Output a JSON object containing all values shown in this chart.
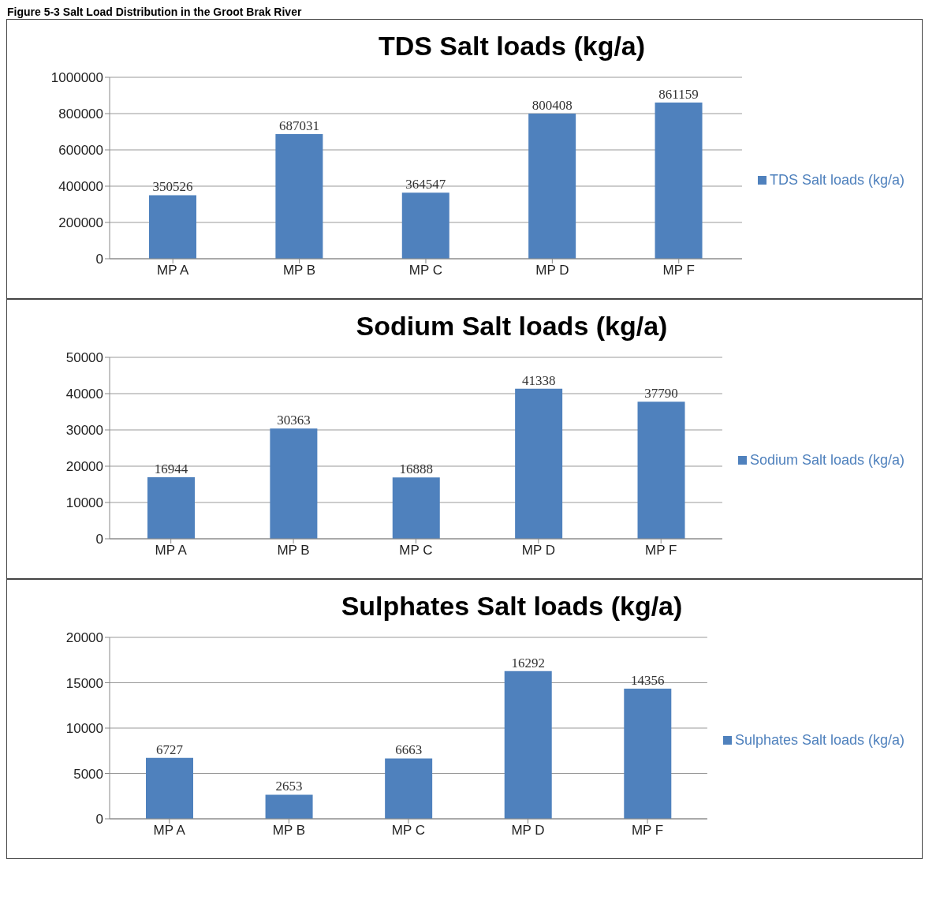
{
  "chart_data": [
    {
      "type": "bar",
      "title": "TDS Salt loads (kg/a)",
      "annotations": [
        "Figure 5-3 Salt Load Distribution in the Groot Brak River"
      ],
      "categories": [
        "MP A",
        "MP B",
        "MP C",
        "MP D",
        "MP F"
      ],
      "series": [
        {
          "name": "TDS Salt loads (kg/a)",
          "color": "#4f81bd",
          "values": [
            350526,
            687031,
            364547,
            800408,
            861159
          ]
        }
      ],
      "ylim": [
        0,
        1000000
      ],
      "yticks": [
        0,
        200000,
        400000,
        600000,
        800000,
        1000000
      ],
      "grid": "y",
      "legend": "right",
      "data_labels": true
    },
    {
      "type": "bar",
      "title": "Sodium Salt loads (kg/a)",
      "categories": [
        "MP A",
        "MP B",
        "MP C",
        "MP D",
        "MP F"
      ],
      "series": [
        {
          "name": "Sodium Salt loads (kg/a)",
          "color": "#4f81bd",
          "values": [
            16944,
            30363,
            16888,
            41338,
            37790
          ]
        }
      ],
      "ylim": [
        0,
        50000
      ],
      "yticks": [
        0,
        10000,
        20000,
        30000,
        40000,
        50000
      ],
      "grid": "y",
      "legend": "right",
      "data_labels": true
    },
    {
      "type": "bar",
      "title": "Sulphates Salt loads (kg/a)",
      "categories": [
        "MP A",
        "MP B",
        "MP C",
        "MP D",
        "MP F"
      ],
      "series": [
        {
          "name": "Sulphates Salt loads (kg/a)",
          "color": "#4f81bd",
          "values": [
            6727,
            2653,
            6663,
            16292,
            14356
          ]
        }
      ],
      "ylim": [
        0,
        20000
      ],
      "yticks": [
        0,
        5000,
        10000,
        15000,
        20000
      ],
      "grid": "y",
      "legend": "right",
      "data_labels": true
    }
  ]
}
